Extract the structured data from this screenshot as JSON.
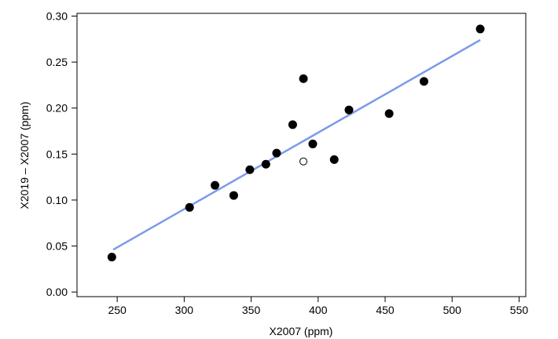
{
  "chart_data": {
    "type": "scatter",
    "xlabel": "X2007 (ppm)",
    "ylabel": "X2019 – X2007 (ppm)",
    "xlim": [
      220,
      555
    ],
    "ylim": [
      -0.005,
      0.303
    ],
    "xticks": [
      250,
      300,
      350,
      400,
      450,
      500,
      550
    ],
    "yticks": [
      0.0,
      0.05,
      0.1,
      0.15,
      0.2,
      0.25,
      0.3
    ],
    "ytick_labels": [
      "0.00",
      "0.05",
      "0.10",
      "0.15",
      "0.20",
      "0.25",
      "0.30"
    ],
    "grid": false,
    "colors": {
      "fit_line": "#7b9bea",
      "points": "#000000",
      "hollow_point_fill": "#ffffff"
    },
    "series": [
      {
        "marker": "filled-circle",
        "points": [
          [
            246,
            0.038
          ],
          [
            304,
            0.092
          ],
          [
            323,
            0.116
          ],
          [
            337,
            0.105
          ],
          [
            349,
            0.133
          ],
          [
            361,
            0.139
          ],
          [
            369,
            0.151
          ],
          [
            381,
            0.182
          ],
          [
            389,
            0.232
          ],
          [
            396,
            0.161
          ],
          [
            412,
            0.144
          ],
          [
            423,
            0.198
          ],
          [
            453,
            0.194
          ],
          [
            479,
            0.229
          ],
          [
            521,
            0.286
          ]
        ]
      },
      {
        "marker": "hollow-circle",
        "points": [
          [
            389,
            0.142
          ]
        ]
      }
    ],
    "fit_line": {
      "x": [
        247,
        521
      ],
      "y": [
        0.046,
        0.274
      ]
    }
  }
}
